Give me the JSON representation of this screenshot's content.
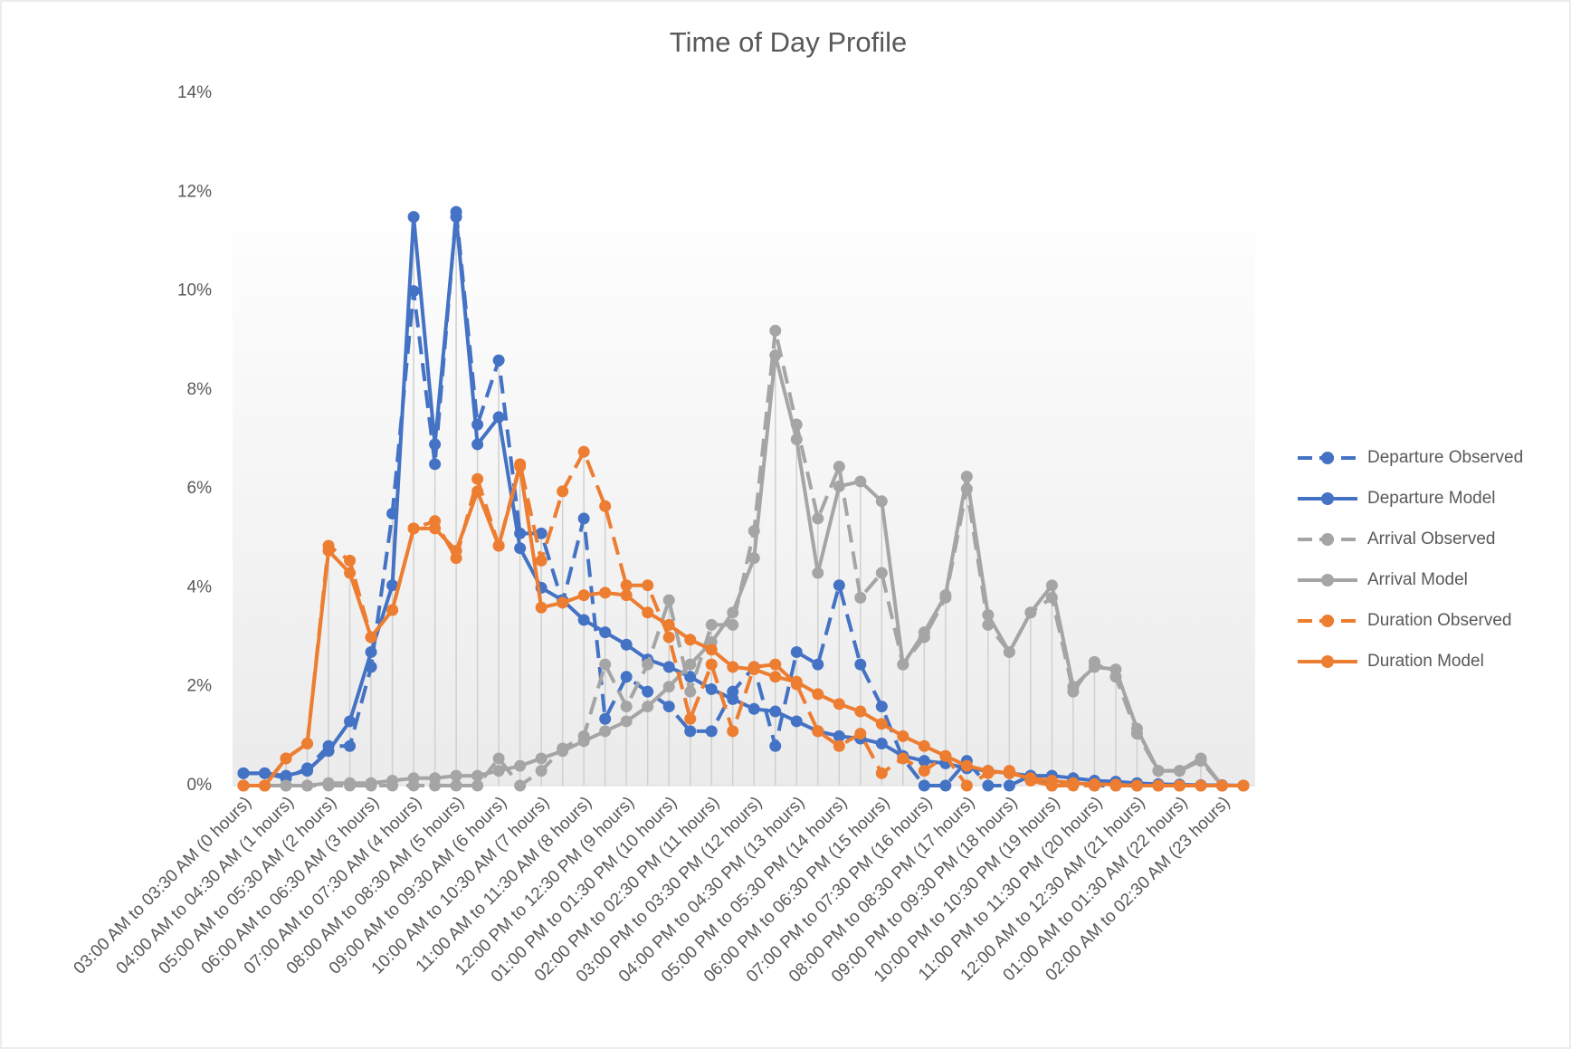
{
  "chart_data": {
    "type": "line",
    "title": "Time of Day Profile",
    "categories": [
      "03:00 AM to 03:30 AM (0 hours)",
      null,
      "04:00 AM to 04:30 AM (1 hours)",
      null,
      "05:00 AM to 05:30 AM (2 hours)",
      null,
      "06:00 AM to 06:30 AM (3 hours)",
      null,
      "07:00 AM to 07:30 AM (4 hours)",
      null,
      "08:00 AM to 08:30 AM (5 hours)",
      null,
      "09:00 AM to 09:30 AM (6 hours)",
      null,
      "10:00 AM to 10:30 AM (7 hours)",
      null,
      "11:00 AM to 11:30 AM (8 hours)",
      null,
      "12:00 PM to 12:30 PM (9 hours)",
      null,
      "01:00 PM to 01:30 PM (10 hours)",
      null,
      "02:00 PM to 02:30 PM (11 hours)",
      null,
      "03:00 PM to 03:30 PM (12 hours)",
      null,
      "04:00 PM to 04:30 PM (13 hours)",
      null,
      "05:00 PM to 05:30 PM (14 hours)",
      null,
      "06:00 PM to 06:30 PM (15 hours)",
      null,
      "07:00 PM to 07:30 PM (16 hours)",
      null,
      "08:00 PM to 08:30 PM (17 hours)",
      null,
      "09:00 PM to 09:30 PM (18 hours)",
      null,
      "10:00 PM to 10:30 PM (19 hours)",
      null,
      "11:00 PM to 11:30 PM (20 hours)",
      null,
      "12:00 AM to 12:30 AM (21 hours)",
      null,
      "01:00 AM to 01:30 AM (22 hours)",
      null,
      "02:00 AM to 02:30 AM (23 hours)",
      null
    ],
    "series": [
      {
        "name": "Departure Observed",
        "color": "#4472c4",
        "dashed": true,
        "values": [
          0.25,
          0.25,
          0.15,
          0.35,
          0.8,
          0.8,
          2.4,
          5.5,
          10,
          6.5,
          11.6,
          7.3,
          8.6,
          5.1,
          5.1,
          3.7,
          5.4,
          1.35,
          2.2,
          1.9,
          1.6,
          1.1,
          1.1,
          1.9,
          2.4,
          0.8,
          2.7,
          2.45,
          4.05,
          2.45,
          1.6,
          0.55,
          0,
          0,
          0.5,
          0,
          0,
          0.2,
          0,
          0.1,
          0,
          0,
          0,
          0,
          0,
          0,
          0,
          0
        ]
      },
      {
        "name": "Departure Model",
        "color": "#4472c4",
        "dashed": false,
        "values": [
          0.25,
          0.25,
          0.2,
          0.3,
          0.7,
          1.3,
          2.7,
          4.05,
          11.5,
          6.9,
          11.5,
          6.9,
          7.45,
          4.8,
          4.0,
          3.75,
          3.35,
          3.1,
          2.85,
          2.55,
          2.4,
          2.2,
          1.95,
          1.75,
          1.55,
          1.5,
          1.3,
          1.1,
          1.0,
          0.95,
          0.85,
          0.6,
          0.5,
          0.45,
          0.35,
          0.3,
          0.25,
          0.2,
          0.2,
          0.15,
          0.1,
          0.08,
          0.05,
          0.03,
          0.02,
          0.01,
          0.01,
          0
        ]
      },
      {
        "name": "Arrival Observed",
        "color": "#a5a5a5",
        "dashed": true,
        "values": [
          0,
          0,
          0,
          0,
          0,
          0,
          0,
          0,
          0,
          0,
          0,
          0,
          0.55,
          0,
          0.3,
          0.75,
          1.0,
          2.45,
          1.6,
          2.45,
          3.75,
          1.9,
          3.25,
          3.25,
          5.15,
          9.2,
          7.3,
          5.4,
          6.45,
          3.8,
          4.3,
          2.45,
          3.0,
          3.8,
          6.0,
          3.25,
          2.7,
          3.5,
          3.8,
          1.9,
          2.5,
          2.2,
          1.05,
          0.3,
          0.3,
          0.5,
          0,
          0
        ]
      },
      {
        "name": "Arrival Model",
        "color": "#a5a5a5",
        "dashed": false,
        "values": [
          0,
          0,
          0,
          0,
          0.05,
          0.05,
          0.05,
          0.1,
          0.15,
          0.15,
          0.2,
          0.2,
          0.3,
          0.4,
          0.55,
          0.7,
          0.9,
          1.1,
          1.3,
          1.6,
          2.0,
          2.45,
          2.9,
          3.5,
          4.6,
          8.7,
          7.0,
          4.3,
          6.05,
          6.15,
          5.75,
          2.45,
          3.1,
          3.85,
          6.25,
          3.45,
          2.7,
          3.5,
          4.05,
          2.0,
          2.4,
          2.35,
          1.15,
          0.3,
          0.3,
          0.55,
          0,
          0
        ]
      },
      {
        "name": "Duration Observed",
        "color": "#ed7d31",
        "dashed": true,
        "values": [
          0,
          0,
          0.55,
          0.85,
          4.85,
          4.55,
          3.0,
          3.55,
          5.2,
          5.35,
          4.6,
          6.2,
          4.85,
          6.5,
          4.55,
          5.95,
          6.75,
          5.65,
          4.05,
          4.05,
          3.0,
          1.35,
          2.45,
          1.1,
          2.4,
          2.45,
          2.05,
          1.1,
          0.8,
          1.05,
          0.25,
          0.55,
          0.3,
          0.6,
          0,
          0.25,
          0.3,
          0.1,
          0,
          0,
          0,
          0,
          0,
          0,
          0,
          0,
          0,
          0
        ]
      },
      {
        "name": "Duration Model",
        "color": "#ed7d31",
        "dashed": false,
        "values": [
          0,
          0,
          0.55,
          0.85,
          4.75,
          4.3,
          3.0,
          3.55,
          5.2,
          5.2,
          4.75,
          5.95,
          4.85,
          6.45,
          3.6,
          3.7,
          3.85,
          3.9,
          3.85,
          3.5,
          3.25,
          2.95,
          2.75,
          2.4,
          2.35,
          2.2,
          2.1,
          1.85,
          1.65,
          1.5,
          1.25,
          1.0,
          0.8,
          0.6,
          0.4,
          0.3,
          0.25,
          0.15,
          0.1,
          0.05,
          0.03,
          0.02,
          0,
          0,
          0,
          0,
          0,
          0
        ]
      }
    ],
    "ylim": [
      0,
      14
    ],
    "yticks": [
      {
        "value": 0,
        "label": "0%"
      },
      {
        "value": 2,
        "label": "2%"
      },
      {
        "value": 4,
        "label": "4%"
      },
      {
        "value": 6,
        "label": "6%"
      },
      {
        "value": 8,
        "label": "8%"
      },
      {
        "value": 10,
        "label": "10%"
      },
      {
        "value": 12,
        "label": "12%"
      },
      {
        "value": 14,
        "label": "14%"
      }
    ],
    "grid": false,
    "legend": "right"
  }
}
